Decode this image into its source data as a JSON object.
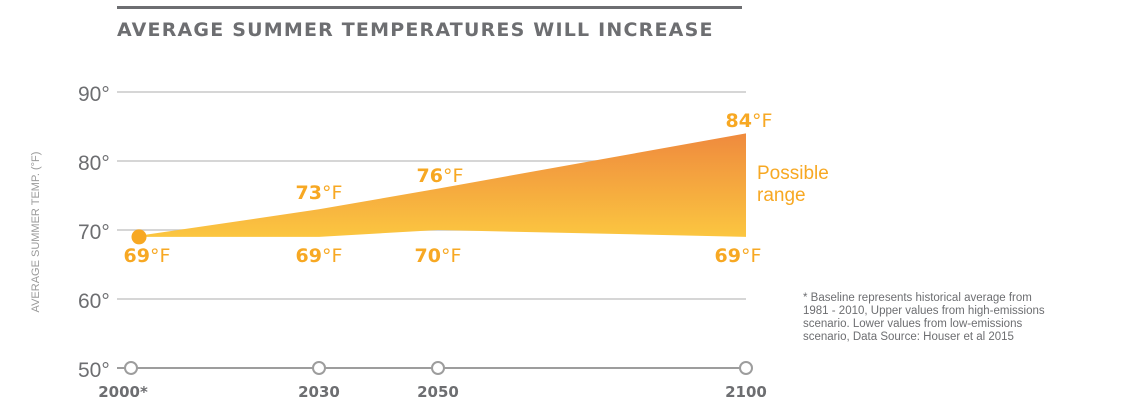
{
  "chart_data": {
    "type": "area",
    "title": "AVERAGE SUMMER TEMPERATURES WILL INCREASE",
    "ylabel": "AVERAGE SUMMER TEMP. (°F)",
    "xlabel": "",
    "ylim": [
      50,
      90
    ],
    "y_ticks": [
      90,
      80,
      70,
      60,
      50
    ],
    "y_tick_labels": [
      "90°",
      "80°",
      "70°",
      "60°",
      "50°"
    ],
    "grid": true,
    "categories": [
      "2000*",
      "2030",
      "2050",
      "2100"
    ],
    "x": [
      2000,
      2030,
      2050,
      2100
    ],
    "series": [
      {
        "name": "Upper values from high-emissions scenario",
        "values": [
          69,
          73,
          76,
          84
        ]
      },
      {
        "name": "Lower values from low-emissions scenario",
        "values": [
          69,
          69,
          70,
          69
        ]
      }
    ],
    "range_label": [
      "Possible",
      "range"
    ],
    "unit": "°F",
    "baseline": {
      "x": 2000,
      "value": 69
    },
    "footnote": "* Baseline represents historical average from 1981 - 2010, Upper values from high-emissions scenario. Lower values from low-emissions scenario, Data Source: Houser et al 2015",
    "colors": {
      "gridline": "#c9c9c9",
      "axis": "#9d9d9d",
      "label_orange": "#f7a823",
      "area_top": "#ef8a3e",
      "area_bottom": "#fbc640",
      "text_gray": "#6d6e71"
    }
  }
}
